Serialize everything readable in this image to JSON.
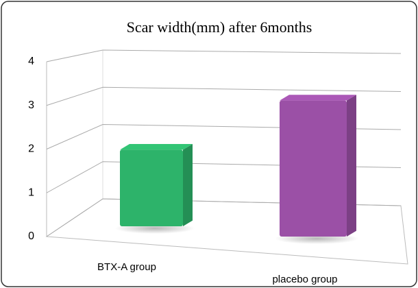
{
  "chart_data": {
    "type": "bar3d",
    "title": "Scar width(mm) after 6months",
    "categories": [
      "BTX-A group",
      "placebo group"
    ],
    "series": [
      {
        "name": null,
        "colors": [
          "#2db36a",
          "#9b50a6"
        ],
        "values": [
          1.8,
          3.2
        ]
      }
    ],
    "ylim": [
      0,
      4
    ],
    "yticks": [
      0,
      1,
      2,
      3,
      4
    ],
    "grid": true
  }
}
